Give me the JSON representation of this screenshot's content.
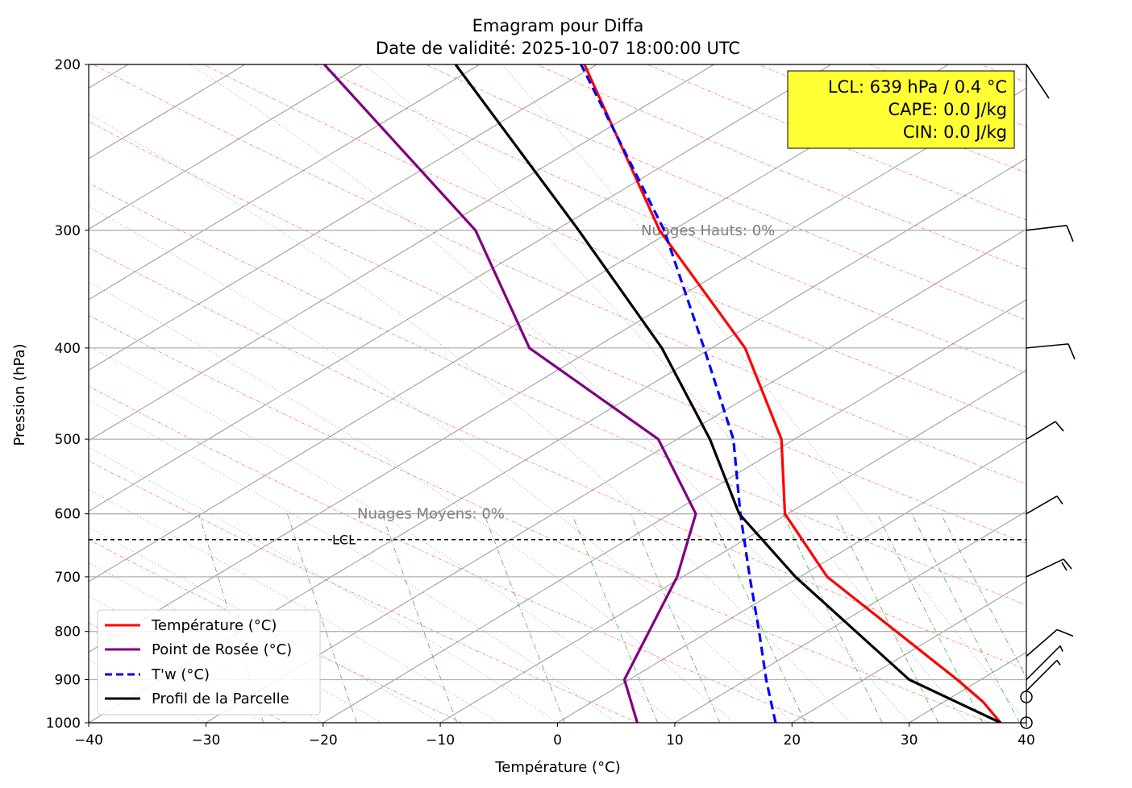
{
  "chart_data": {
    "type": "line",
    "chart_kind": "emagram",
    "title": "Emagram pour Diffa",
    "subtitle": "Date de validité: 2025-10-07 18:00:00 UTC",
    "xlabel": "Température (°C)",
    "ylabel": "Pression (hPa)",
    "xlim": [
      -40,
      40
    ],
    "ylim": [
      1000,
      200
    ],
    "y_scale": "log",
    "x_ticks": [
      "−40",
      "−30",
      "−20",
      "−10",
      "0",
      "10",
      "20",
      "30",
      "40"
    ],
    "x_tick_values": [
      -40,
      -30,
      -20,
      -10,
      0,
      10,
      20,
      30,
      40
    ],
    "y_ticks": [
      1000,
      900,
      800,
      700,
      600,
      500,
      400,
      300,
      200
    ],
    "grid": true,
    "legend_position": "lower-left",
    "series": [
      {
        "name": "Température (°C)",
        "color": "#ff0000",
        "style": "solid",
        "points": [
          [
            37.8,
            1000
          ],
          [
            36.3,
            950
          ],
          [
            34.1,
            900
          ],
          [
            23.0,
            700
          ],
          [
            19.4,
            600
          ],
          [
            19.1,
            500
          ],
          [
            16.0,
            400
          ],
          [
            8.7,
            300
          ],
          [
            2.3,
            200
          ]
        ]
      },
      {
        "name": "Point de Rosée (°C)",
        "color": "#800080",
        "style": "solid",
        "points": [
          [
            6.8,
            1000
          ],
          [
            6.0,
            925
          ],
          [
            5.7,
            900
          ],
          [
            10.2,
            700
          ],
          [
            11.8,
            600
          ],
          [
            8.6,
            500
          ],
          [
            -2.4,
            400
          ],
          [
            -7.0,
            300
          ],
          [
            -19.9,
            200
          ]
        ]
      },
      {
        "name": "T'w (°C)",
        "color": "#0000ff",
        "style": "dashed",
        "points": [
          [
            18.6,
            1000
          ],
          [
            17.8,
            900
          ],
          [
            17.2,
            800
          ],
          [
            16.4,
            700
          ],
          [
            15.6,
            600
          ],
          [
            15.0,
            500
          ],
          [
            12.5,
            400
          ],
          [
            9.1,
            300
          ],
          [
            2.0,
            200
          ]
        ]
      },
      {
        "name": "Profil de la Parcelle",
        "color": "#000000",
        "style": "solid",
        "points": [
          [
            37.8,
            1000
          ],
          [
            30.0,
            900
          ],
          [
            20.3,
            700
          ],
          [
            15.5,
            600
          ],
          [
            13.0,
            500
          ],
          [
            8.9,
            400
          ],
          [
            1.8,
            300
          ],
          [
            -8.7,
            200
          ]
        ]
      }
    ],
    "annotations": {
      "lcl": {
        "pressure": 639,
        "label": "LCL"
      },
      "cloud_labels": [
        {
          "text": "Nuages Hauts: 0%",
          "pressure": 300
        },
        {
          "text": "Nuages Moyens: 0%",
          "pressure": 600
        }
      ],
      "infobox": {
        "lines": [
          "LCL: 639 hPa / 0.4 °C",
          "CAPE: 0.0 J/kg",
          "CIN: 0.0 J/kg"
        ],
        "bg_color": "#ffff33"
      }
    },
    "background_lines": {
      "isotherm_color": "#a0a0a0",
      "dry_adiabat_color": "#ff4040",
      "moist_adiabat_color": "#6060ff",
      "mixing_ratio_color": "#2ca02c"
    },
    "wind_barbs_levels": [
      1000,
      950,
      925,
      900,
      850,
      700,
      600,
      500,
      400,
      300,
      200
    ]
  }
}
